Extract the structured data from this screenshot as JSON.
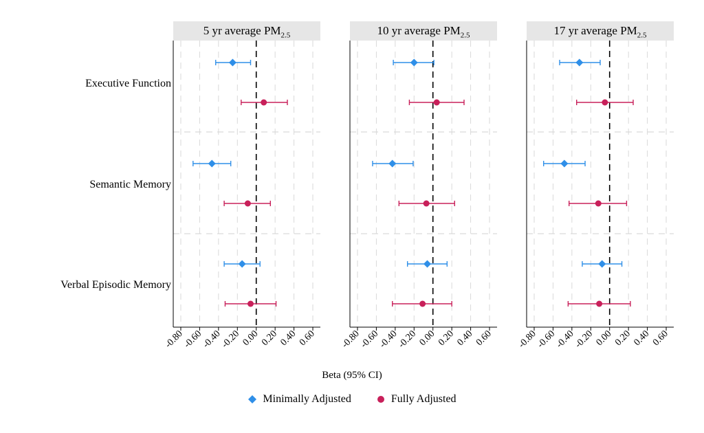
{
  "chart_data": [
    {
      "type": "scatter",
      "title": "5 yr average PM",
      "title_subscript": "2.5",
      "outcomes": [
        "Executive Function",
        "Semantic Memory",
        "Verbal Episodic Memory"
      ],
      "xticks": [
        "-0.80",
        "-0.60",
        "-0.40",
        "-0.20",
        "0.00",
        "0.20",
        "0.40",
        "0.60"
      ],
      "xlim": [
        -0.88,
        0.68
      ],
      "reference_line": 0,
      "series": [
        {
          "name": "Minimally Adjusted",
          "values": [
            {
              "outcome": "Executive Function",
              "beta": -0.25,
              "lo": -0.43,
              "hi": -0.06
            },
            {
              "outcome": "Semantic Memory",
              "beta": -0.47,
              "lo": -0.67,
              "hi": -0.27
            },
            {
              "outcome": "Verbal Episodic Memory",
              "beta": -0.15,
              "lo": -0.34,
              "hi": 0.04
            }
          ]
        },
        {
          "name": "Fully Adjusted",
          "values": [
            {
              "outcome": "Executive Function",
              "beta": 0.08,
              "lo": -0.16,
              "hi": 0.33
            },
            {
              "outcome": "Semantic Memory",
              "beta": -0.09,
              "lo": -0.34,
              "hi": 0.15
            },
            {
              "outcome": "Verbal Episodic Memory",
              "beta": -0.06,
              "lo": -0.33,
              "hi": 0.21
            }
          ]
        }
      ]
    },
    {
      "type": "scatter",
      "title": "10 yr average PM",
      "title_subscript": "2.5",
      "outcomes": [
        "Executive Function",
        "Semantic Memory",
        "Verbal Episodic Memory"
      ],
      "xticks": [
        "-0.80",
        "-0.60",
        "-0.40",
        "-0.20",
        "0.00",
        "0.20",
        "0.40",
        "0.60"
      ],
      "xlim": [
        -0.88,
        0.68
      ],
      "reference_line": 0,
      "series": [
        {
          "name": "Minimally Adjusted",
          "values": [
            {
              "outcome": "Executive Function",
              "beta": -0.2,
              "lo": -0.42,
              "hi": 0.01
            },
            {
              "outcome": "Semantic Memory",
              "beta": -0.43,
              "lo": -0.64,
              "hi": -0.21
            },
            {
              "outcome": "Verbal Episodic Memory",
              "beta": -0.06,
              "lo": -0.27,
              "hi": 0.15
            }
          ]
        },
        {
          "name": "Fully Adjusted",
          "values": [
            {
              "outcome": "Executive Function",
              "beta": 0.04,
              "lo": -0.25,
              "hi": 0.33
            },
            {
              "outcome": "Semantic Memory",
              "beta": -0.07,
              "lo": -0.36,
              "hi": 0.23
            },
            {
              "outcome": "Verbal Episodic Memory",
              "beta": -0.11,
              "lo": -0.43,
              "hi": 0.2
            }
          ]
        }
      ]
    },
    {
      "type": "scatter",
      "title": "17 yr average PM",
      "title_subscript": "2.5",
      "outcomes": [
        "Executive Function",
        "Semantic Memory",
        "Verbal Episodic Memory"
      ],
      "xticks": [
        "-0.80",
        "-0.60",
        "-0.40",
        "-0.20",
        "0.00",
        "0.20",
        "0.40",
        "0.60"
      ],
      "xlim": [
        -0.88,
        0.68
      ],
      "reference_line": 0,
      "series": [
        {
          "name": "Minimally Adjusted",
          "values": [
            {
              "outcome": "Executive Function",
              "beta": -0.32,
              "lo": -0.53,
              "hi": -0.1
            },
            {
              "outcome": "Semantic Memory",
              "beta": -0.48,
              "lo": -0.7,
              "hi": -0.26
            },
            {
              "outcome": "Verbal Episodic Memory",
              "beta": -0.08,
              "lo": -0.29,
              "hi": 0.13
            }
          ]
        },
        {
          "name": "Fully Adjusted",
          "values": [
            {
              "outcome": "Executive Function",
              "beta": -0.05,
              "lo": -0.35,
              "hi": 0.25
            },
            {
              "outcome": "Semantic Memory",
              "beta": -0.12,
              "lo": -0.43,
              "hi": 0.18
            },
            {
              "outcome": "Verbal Episodic Memory",
              "beta": -0.11,
              "lo": -0.44,
              "hi": 0.22
            }
          ]
        }
      ]
    }
  ],
  "figure": {
    "row_labels": [
      "Executive Function",
      "Semantic Memory",
      "Verbal Episodic Memory"
    ],
    "xlabel": "Beta (95% CI)",
    "legend": [
      {
        "name": "Minimally Adjusted",
        "marker": "diamond",
        "color": "#2f8fe8"
      },
      {
        "name": "Fully Adjusted",
        "marker": "circle",
        "color": "#c8205a"
      }
    ],
    "colors": {
      "minimally": "#2f8fe8",
      "fully": "#c8205a",
      "header_bg": "#e6e6e6",
      "grid": "#d9d9d9"
    }
  }
}
